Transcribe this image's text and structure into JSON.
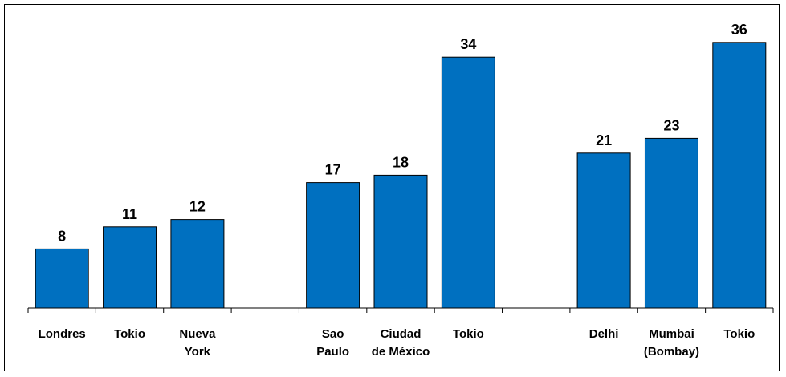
{
  "chart_data": {
    "type": "bar",
    "categories": [
      [
        "Londres"
      ],
      [
        "Tokio"
      ],
      [
        "Nueva",
        "York"
      ],
      [
        ""
      ],
      [
        "Sao",
        "Paulo"
      ],
      [
        "Ciudad",
        "de México"
      ],
      [
        "Tokio"
      ],
      [
        ""
      ],
      [
        "Delhi"
      ],
      [
        "Mumbai",
        "(Bombay)"
      ],
      [
        "Tokio"
      ]
    ],
    "values": [
      8,
      11,
      12,
      null,
      17,
      18,
      34,
      null,
      21,
      23,
      36
    ],
    "ylim": [
      0,
      40
    ],
    "bar_color": "#0070C0",
    "grid": false,
    "legend": "none",
    "data_labels": true
  }
}
